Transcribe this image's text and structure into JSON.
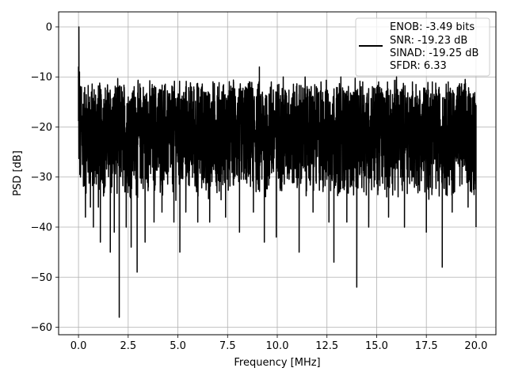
{
  "chart_data": {
    "type": "line",
    "title": "",
    "xlabel": "Frequency [MHz]",
    "ylabel": "PSD [dB]",
    "xlim": [
      -1.0,
      21.0
    ],
    "ylim": [
      -61.5,
      3.0
    ],
    "xticks": [
      0.0,
      2.5,
      5.0,
      7.5,
      10.0,
      12.5,
      15.0,
      17.5,
      20.0
    ],
    "xtick_labels": [
      "0.0",
      "2.5",
      "5.0",
      "7.5",
      "10.0",
      "12.5",
      "15.0",
      "17.5",
      "20.0"
    ],
    "yticks": [
      0,
      -10,
      -20,
      -30,
      -40,
      -50,
      -60
    ],
    "ytick_labels": [
      "0",
      "−10",
      "−20",
      "−30",
      "−40",
      "−50",
      "−60"
    ],
    "grid": true,
    "legend_position": "top-right",
    "line_color": "#000000",
    "series": [
      {
        "name": "",
        "color": "#000000",
        "x_range": [
          0.0,
          20.0
        ],
        "band_top_db": -12,
        "band_bottom_db": -33,
        "points": [
          [
            0.0,
            -8
          ],
          [
            0.02,
            0.0
          ],
          [
            0.05,
            -9
          ],
          [
            0.1,
            -30
          ],
          [
            0.15,
            -12
          ],
          [
            0.2,
            -25
          ],
          [
            0.3,
            -15
          ],
          [
            0.35,
            -38
          ],
          [
            0.45,
            -20
          ],
          [
            0.6,
            -36
          ],
          [
            0.65,
            -13
          ],
          [
            0.75,
            -40
          ],
          [
            0.9,
            -18
          ],
          [
            1.0,
            -36
          ],
          [
            1.1,
            -14
          ],
          [
            1.1,
            -43
          ],
          [
            1.3,
            -20
          ],
          [
            1.6,
            -45
          ],
          [
            1.7,
            -16
          ],
          [
            1.8,
            -41
          ],
          [
            1.9,
            -22
          ],
          [
            2.05,
            -58
          ],
          [
            2.1,
            -18
          ],
          [
            2.4,
            -40
          ],
          [
            2.5,
            -14
          ],
          [
            2.65,
            -44
          ],
          [
            2.8,
            -20
          ],
          [
            2.95,
            -49
          ],
          [
            3.1,
            -17
          ],
          [
            3.35,
            -43
          ],
          [
            3.5,
            -15
          ],
          [
            3.8,
            -39
          ],
          [
            4.0,
            -21
          ],
          [
            4.2,
            -37
          ],
          [
            4.5,
            -14
          ],
          [
            4.8,
            -39
          ],
          [
            5.0,
            -16
          ],
          [
            5.1,
            -45
          ],
          [
            5.3,
            -15
          ],
          [
            5.4,
            -37
          ],
          [
            5.8,
            -12
          ],
          [
            6.0,
            -39
          ],
          [
            6.3,
            -13
          ],
          [
            6.6,
            -39
          ],
          [
            7.0,
            -12
          ],
          [
            7.4,
            -38
          ],
          [
            7.8,
            -11
          ],
          [
            8.1,
            -41
          ],
          [
            8.4,
            -12
          ],
          [
            8.8,
            -37
          ],
          [
            9.1,
            -8
          ],
          [
            9.35,
            -43
          ],
          [
            9.7,
            -11
          ],
          [
            9.95,
            -42
          ],
          [
            10.3,
            -10
          ],
          [
            11.1,
            -45
          ],
          [
            11.4,
            -10
          ],
          [
            11.8,
            -37
          ],
          [
            12.2,
            -11
          ],
          [
            12.6,
            -39
          ],
          [
            12.85,
            -47
          ],
          [
            13.2,
            -10
          ],
          [
            13.5,
            -39
          ],
          [
            14.0,
            -52
          ],
          [
            14.3,
            -11
          ],
          [
            14.6,
            -40
          ],
          [
            15.1,
            -11
          ],
          [
            15.6,
            -38
          ],
          [
            16.0,
            -10
          ],
          [
            16.4,
            -40
          ],
          [
            16.8,
            -11
          ],
          [
            17.5,
            -41
          ],
          [
            17.8,
            -11
          ],
          [
            18.3,
            -48
          ],
          [
            18.6,
            -11
          ],
          [
            18.8,
            -37
          ],
          [
            19.2,
            -12
          ],
          [
            19.6,
            -36
          ],
          [
            19.9,
            -14
          ],
          [
            20.0,
            -40
          ]
        ]
      }
    ],
    "legend": {
      "lines": [
        "ENOB: -3.49 bits",
        "SNR: -19.23 dB",
        "SINAD: -19.25 dB",
        "SFDR: 6.33"
      ]
    }
  }
}
